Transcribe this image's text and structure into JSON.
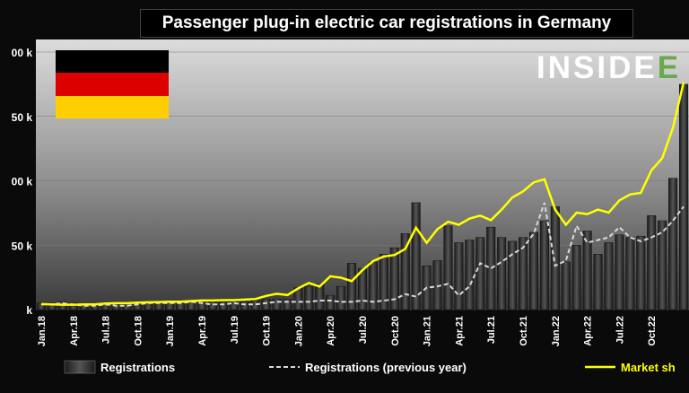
{
  "title": "Passenger plug-in electric car registrations in Germany",
  "logo": {
    "text_main": "INSIDE",
    "text_accent": "E"
  },
  "flag": {
    "name": "germany",
    "colors": [
      "#000000",
      "#dd0000",
      "#ffce00"
    ]
  },
  "colors": {
    "bars": "#3b3b3b",
    "prev_year": "#d9d9d9",
    "market_share": "#ffff00"
  },
  "chart_data": {
    "type": "bar",
    "y_unit_suffix": "k",
    "yticks_visible": [
      "00 k",
      "50 k",
      "00 k",
      "50 k",
      "k"
    ],
    "ylim": [
      0,
      200
    ],
    "x_tick_labels": [
      "Jan.18",
      "Apr.18",
      "Jul.18",
      "Oct.18",
      "Jan.19",
      "Apr.19",
      "Jul.19",
      "Oct.19",
      "Jan.20",
      "Apr.20",
      "Jul.20",
      "Oct.20",
      "Jan.21",
      "Apr.21",
      "Jul.21",
      "Oct.21",
      "Jan.22",
      "Apr.22",
      "Jul.22",
      "Oct.22"
    ],
    "categories": [
      "Jan.18",
      "Feb.18",
      "Mar.18",
      "Apr.18",
      "May.18",
      "Jun.18",
      "Jul.18",
      "Aug.18",
      "Sep.18",
      "Oct.18",
      "Nov.18",
      "Dec.18",
      "Jan.19",
      "Feb.19",
      "Mar.19",
      "Apr.19",
      "May.19",
      "Jun.19",
      "Jul.19",
      "Aug.19",
      "Sep.19",
      "Oct.19",
      "Nov.19",
      "Dec.19",
      "Jan.20",
      "Feb.20",
      "Mar.20",
      "Apr.20",
      "May.20",
      "Jun.20",
      "Jul.20",
      "Aug.20",
      "Sep.20",
      "Oct.20",
      "Nov.20",
      "Dec.20",
      "Jan.21",
      "Feb.21",
      "Mar.21",
      "Apr.21",
      "May.21",
      "Jun.21",
      "Jul.21",
      "Aug.21",
      "Sep.21",
      "Oct.21",
      "Nov.21",
      "Dec.21",
      "Jan.22",
      "Feb.22",
      "Mar.22",
      "Apr.22",
      "May.22",
      "Jun.22",
      "Jul.22",
      "Aug.22",
      "Sep.22",
      "Oct.22",
      "Nov.22",
      "Dec.22",
      "Jan.23"
    ],
    "series": [
      {
        "name": "Registrations",
        "type": "bar",
        "values": [
          5,
          5,
          6,
          5,
          4,
          4,
          5,
          4,
          4,
          5,
          6,
          6,
          6,
          6,
          7,
          7,
          6,
          6,
          7,
          6,
          7,
          8,
          8,
          8,
          17,
          18,
          20,
          11,
          18,
          36,
          32,
          37,
          43,
          48,
          59,
          83,
          34,
          38,
          65,
          52,
          54,
          56,
          64,
          56,
          53,
          56,
          60,
          69,
          80,
          37,
          50,
          61,
          43,
          52,
          58,
          56,
          57,
          73,
          69,
          102,
          175
        ]
      },
      {
        "name": "Registrations (previous year)",
        "type": "line",
        "values": [
          4,
          4,
          5,
          4,
          3,
          3,
          4,
          3,
          3,
          4,
          5,
          5,
          5,
          5,
          6,
          5,
          4,
          4,
          5,
          4,
          4,
          5,
          6,
          6,
          6,
          6,
          7,
          7,
          6,
          6,
          7,
          6,
          7,
          8,
          12,
          10,
          17,
          18,
          20,
          11,
          18,
          36,
          32,
          37,
          43,
          48,
          59,
          83,
          34,
          38,
          65,
          52,
          54,
          56,
          64,
          56,
          53,
          56,
          60,
          69,
          80
        ]
      },
      {
        "name": "Market share",
        "type": "line",
        "axis": "secondary",
        "values": [
          1.8,
          1.7,
          1.6,
          1.6,
          1.7,
          1.7,
          2.0,
          2.1,
          2.1,
          2.3,
          2.4,
          2.5,
          2.6,
          2.6,
          2.8,
          3.0,
          3.0,
          3.1,
          3.1,
          3.3,
          3.5,
          4.5,
          5.2,
          4.8,
          7.0,
          8.8,
          7.6,
          11.0,
          10.5,
          9.4,
          13.0,
          16.0,
          17.5,
          18.0,
          20.0,
          27.0,
          22.0,
          26.5,
          29.0,
          28.0,
          30.0,
          31.0,
          29.5,
          33.0,
          37.0,
          39.0,
          42.0,
          43.0,
          33.0,
          28.0,
          32.0,
          31.5,
          33.0,
          32.0,
          36.0,
          38.0,
          38.5,
          46.0,
          50.0,
          60.0,
          75.0
        ]
      }
    ],
    "legend": [
      "Registrations",
      "Registrations (previous year)",
      "Market sh"
    ],
    "legend_position": "bottom"
  }
}
